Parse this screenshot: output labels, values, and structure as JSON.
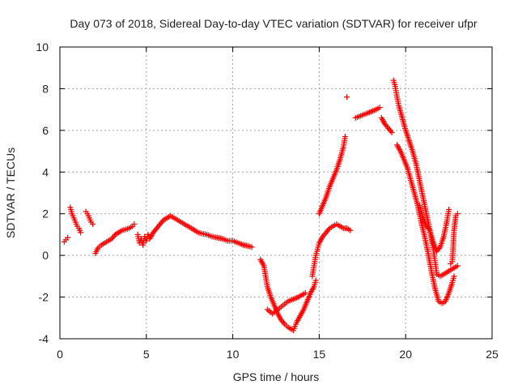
{
  "chart_data": {
    "type": "scatter",
    "title": "Day 073 of 2018, Sidereal Day-to-day VTEC variation (SDTVAR) for receiver ufpr",
    "xlabel": "GPS time / hours",
    "ylabel": "SDTVAR / TECUs",
    "xlim": [
      0,
      25
    ],
    "ylim": [
      -4,
      10
    ],
    "xticks": [
      "0",
      "5",
      "10",
      "15",
      "20",
      "25"
    ],
    "yticks": [
      "-4",
      "-2",
      "0",
      "2",
      "4",
      "6",
      "8",
      "10"
    ],
    "grid": true,
    "marker": "plus",
    "color": "#ff0000",
    "segments": [
      [
        [
          0.25,
          0.65
        ],
        [
          0.35,
          0.75
        ],
        [
          0.45,
          0.85
        ]
      ],
      [
        [
          0.6,
          2.3
        ],
        [
          0.7,
          2.0
        ],
        [
          0.8,
          1.8
        ],
        [
          0.9,
          1.6
        ],
        [
          1.0,
          1.4
        ],
        [
          1.1,
          1.3
        ],
        [
          1.2,
          1.1
        ]
      ],
      [
        [
          1.5,
          2.1
        ],
        [
          1.6,
          2.0
        ],
        [
          1.7,
          1.8
        ],
        [
          1.8,
          1.6
        ],
        [
          1.9,
          1.5
        ]
      ],
      [
        [
          2.05,
          0.1
        ],
        [
          2.2,
          0.35
        ],
        [
          2.4,
          0.5
        ],
        [
          2.6,
          0.6
        ],
        [
          2.8,
          0.7
        ],
        [
          3.0,
          0.8
        ],
        [
          3.2,
          1.0
        ],
        [
          3.4,
          1.1
        ],
        [
          3.6,
          1.2
        ],
        [
          3.8,
          1.25
        ],
        [
          4.0,
          1.3
        ],
        [
          4.2,
          1.4
        ],
        [
          4.3,
          1.5
        ]
      ],
      [
        [
          4.5,
          1.0
        ],
        [
          4.6,
          0.6
        ],
        [
          4.7,
          0.8
        ],
        [
          4.8,
          0.5
        ],
        [
          4.9,
          0.9
        ],
        [
          5.0,
          0.7
        ],
        [
          5.1,
          1.0
        ],
        [
          5.2,
          0.8
        ],
        [
          5.4,
          1.1
        ],
        [
          5.6,
          1.3
        ],
        [
          5.8,
          1.5
        ],
        [
          6.0,
          1.7
        ],
        [
          6.2,
          1.8
        ],
        [
          6.4,
          1.9
        ],
        [
          6.6,
          1.8
        ],
        [
          6.8,
          1.7
        ],
        [
          7.0,
          1.6
        ],
        [
          7.2,
          1.5
        ],
        [
          7.4,
          1.4
        ],
        [
          7.6,
          1.3
        ],
        [
          7.8,
          1.2
        ],
        [
          8.0,
          1.1
        ],
        [
          8.2,
          1.05
        ],
        [
          8.5,
          1.0
        ],
        [
          8.8,
          0.9
        ],
        [
          9.1,
          0.85
        ],
        [
          9.4,
          0.8
        ],
        [
          9.7,
          0.7
        ],
        [
          10.0,
          0.7
        ],
        [
          10.3,
          0.6
        ],
        [
          10.6,
          0.5
        ],
        [
          10.9,
          0.45
        ],
        [
          11.1,
          0.4
        ]
      ],
      [
        [
          11.6,
          -0.2
        ],
        [
          11.8,
          -0.5
        ],
        [
          12.0,
          -1.5
        ],
        [
          12.2,
          -2.0
        ],
        [
          12.4,
          -2.4
        ],
        [
          12.6,
          -2.8
        ],
        [
          12.8,
          -3.1
        ],
        [
          13.0,
          -3.3
        ],
        [
          13.2,
          -3.45
        ],
        [
          13.4,
          -3.55
        ],
        [
          13.5,
          -3.6
        ],
        [
          13.6,
          -3.4
        ],
        [
          13.7,
          -3.2
        ],
        [
          13.9,
          -2.9
        ],
        [
          14.1,
          -2.6
        ],
        [
          14.3,
          -2.2
        ],
        [
          14.5,
          -1.8
        ],
        [
          14.7,
          -1.5
        ],
        [
          14.8,
          -1.2
        ]
      ],
      [
        [
          12.0,
          -2.6
        ],
        [
          12.3,
          -2.8
        ],
        [
          12.6,
          -2.6
        ],
        [
          12.9,
          -2.4
        ],
        [
          13.2,
          -2.2
        ],
        [
          13.5,
          -2.1
        ],
        [
          13.8,
          -2.0
        ],
        [
          14.0,
          -1.9
        ],
        [
          14.2,
          -1.8
        ]
      ],
      [
        [
          14.6,
          -1.0
        ],
        [
          14.7,
          -0.5
        ],
        [
          14.8,
          0.0
        ],
        [
          14.9,
          0.3
        ],
        [
          15.0,
          0.6
        ],
        [
          15.2,
          0.9
        ],
        [
          15.4,
          1.1
        ],
        [
          15.6,
          1.3
        ],
        [
          15.8,
          1.4
        ],
        [
          16.0,
          1.5
        ],
        [
          16.2,
          1.4
        ],
        [
          16.4,
          1.3
        ],
        [
          16.6,
          1.3
        ],
        [
          16.8,
          1.2
        ]
      ],
      [
        [
          15.0,
          2.0
        ],
        [
          15.2,
          2.4
        ],
        [
          15.4,
          2.8
        ],
        [
          15.6,
          3.3
        ],
        [
          15.8,
          3.7
        ],
        [
          16.0,
          4.1
        ],
        [
          16.2,
          4.6
        ],
        [
          16.4,
          5.2
        ],
        [
          16.5,
          5.7
        ]
      ],
      [
        [
          16.6,
          7.6
        ]
      ],
      [
        [
          17.1,
          6.6
        ],
        [
          17.4,
          6.7
        ],
        [
          17.7,
          6.8
        ],
        [
          18.0,
          6.9
        ],
        [
          18.3,
          7.0
        ],
        [
          18.5,
          7.1
        ]
      ],
      [
        [
          18.6,
          6.6
        ],
        [
          18.8,
          6.3
        ],
        [
          19.0,
          6.1
        ],
        [
          19.2,
          5.9
        ]
      ],
      [
        [
          19.3,
          8.4
        ],
        [
          19.4,
          8.1
        ],
        [
          19.5,
          7.6
        ],
        [
          19.6,
          7.2
        ],
        [
          19.8,
          6.6
        ],
        [
          20.0,
          6.0
        ],
        [
          20.2,
          5.5
        ],
        [
          20.4,
          5.0
        ],
        [
          20.6,
          4.4
        ],
        [
          20.8,
          3.6
        ],
        [
          21.0,
          2.8
        ],
        [
          21.2,
          2.0
        ],
        [
          21.4,
          1.2
        ],
        [
          21.6,
          0.6
        ],
        [
          21.8,
          0.2
        ],
        [
          22.0,
          0.4
        ],
        [
          22.2,
          0.9
        ],
        [
          22.4,
          1.7
        ],
        [
          22.5,
          2.2
        ]
      ],
      [
        [
          19.5,
          5.3
        ],
        [
          19.7,
          5.0
        ],
        [
          19.9,
          4.6
        ],
        [
          20.1,
          4.2
        ],
        [
          20.3,
          3.6
        ],
        [
          20.5,
          3.0
        ],
        [
          20.7,
          2.4
        ],
        [
          20.9,
          1.6
        ],
        [
          21.1,
          0.9
        ],
        [
          21.3,
          0.1
        ],
        [
          21.5,
          -0.8
        ],
        [
          21.7,
          -1.6
        ],
        [
          21.9,
          -2.2
        ],
        [
          22.1,
          -2.3
        ],
        [
          22.3,
          -2.2
        ],
        [
          22.5,
          -1.8
        ],
        [
          22.7,
          -1.3
        ],
        [
          22.8,
          -1.0
        ]
      ],
      [
        [
          20.8,
          2.4
        ],
        [
          21.0,
          1.8
        ],
        [
          21.2,
          1.4
        ],
        [
          21.4,
          1.2
        ],
        [
          21.6,
          0.3
        ],
        [
          21.8,
          -0.9
        ],
        [
          22.0,
          -1.0
        ],
        [
          22.2,
          -0.9
        ],
        [
          22.4,
          -0.8
        ],
        [
          22.6,
          -0.7
        ],
        [
          22.8,
          -0.6
        ],
        [
          23.0,
          -0.5
        ]
      ],
      [
        [
          22.6,
          -0.4
        ],
        [
          22.7,
          -0.3
        ],
        [
          22.8,
          1.2
        ],
        [
          22.9,
          1.9
        ],
        [
          23.0,
          2.0
        ]
      ]
    ]
  }
}
